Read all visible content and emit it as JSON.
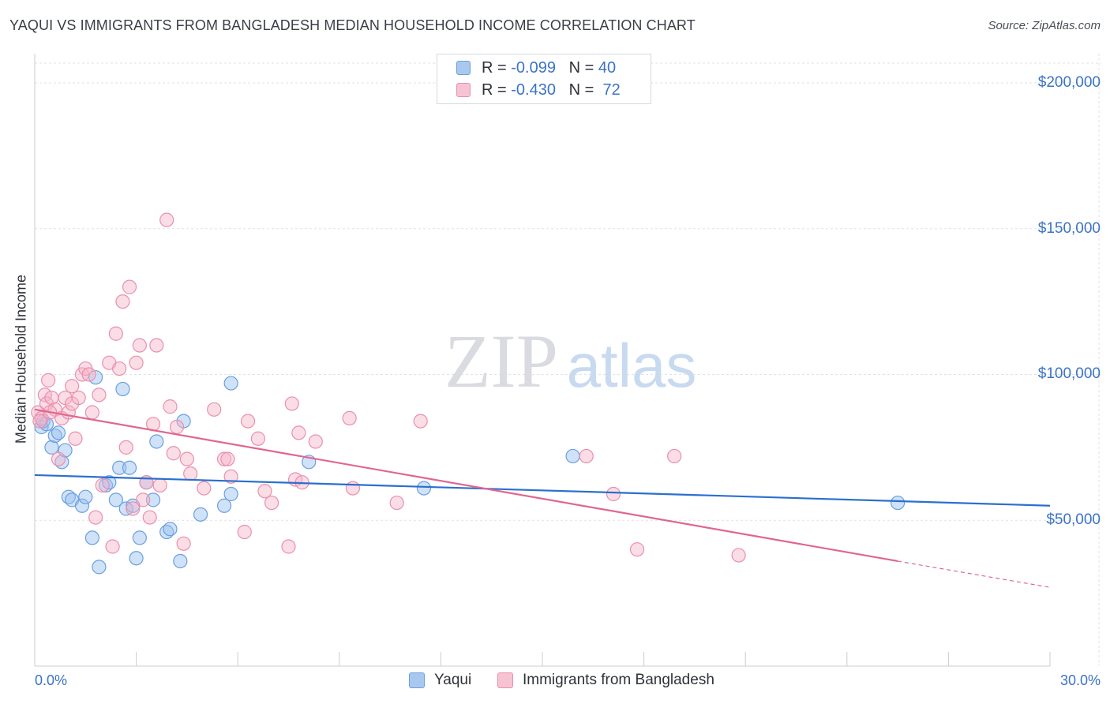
{
  "title": "YAQUI VS IMMIGRANTS FROM BANGLADESH MEDIAN HOUSEHOLD INCOME CORRELATION CHART",
  "source": "Source: ZipAtlas.com",
  "watermark": {
    "zip": "ZIP",
    "atlas": "atlas"
  },
  "legend": {
    "rows": [
      {
        "r_label": "R =",
        "r_value": "-0.099",
        "n_label": "N =",
        "n_value": "40",
        "color": "#a9c8f0",
        "border": "#6a9fe0"
      },
      {
        "r_label": "R =",
        "r_value": "-0.430",
        "n_label": "N =",
        "n_value": "72",
        "color": "#f7c3d3",
        "border": "#e98fae"
      }
    ],
    "bottom": [
      {
        "label": "Yaqui",
        "color": "#a9c8f0",
        "border": "#6a9fe0"
      },
      {
        "label": "Immigrants from Bangladesh",
        "color": "#f7c3d3",
        "border": "#e98fae"
      }
    ]
  },
  "chart_data": {
    "type": "scatter",
    "ylabel": "Median Household Income",
    "xlim": [
      0,
      30
    ],
    "ylim": [
      0,
      210000
    ],
    "x_tick_labels": [
      "0.0%",
      "30.0%"
    ],
    "y_ticks": [
      {
        "value": 50000,
        "label": "$50,000"
      },
      {
        "value": 100000,
        "label": "$100,000"
      },
      {
        "value": 150000,
        "label": "$150,000"
      },
      {
        "value": 200000,
        "label": "$200,000"
      }
    ],
    "grid": true,
    "series": [
      {
        "name": "Yaqui",
        "color": "#6a9fe0",
        "fill": "rgba(150,190,240,0.45)",
        "trend_color": "#2a6fd0",
        "trend": {
          "x": [
            0,
            30
          ],
          "y": [
            65500,
            55000
          ]
        },
        "points": [
          [
            0.2,
            82000
          ],
          [
            0.25,
            84000
          ],
          [
            0.35,
            83000
          ],
          [
            0.5,
            75000
          ],
          [
            0.6,
            79000
          ],
          [
            0.7,
            80000
          ],
          [
            0.8,
            70000
          ],
          [
            0.9,
            74000
          ],
          [
            1.0,
            58000
          ],
          [
            1.1,
            57000
          ],
          [
            1.4,
            55000
          ],
          [
            1.5,
            58000
          ],
          [
            1.7,
            44000
          ],
          [
            1.8,
            99000
          ],
          [
            1.9,
            34000
          ],
          [
            2.1,
            62000
          ],
          [
            2.2,
            63000
          ],
          [
            2.4,
            57000
          ],
          [
            2.5,
            68000
          ],
          [
            2.6,
            95000
          ],
          [
            2.7,
            54000
          ],
          [
            2.8,
            68000
          ],
          [
            2.9,
            55000
          ],
          [
            3.0,
            37000
          ],
          [
            3.1,
            44000
          ],
          [
            3.3,
            63000
          ],
          [
            3.5,
            57000
          ],
          [
            3.6,
            77000
          ],
          [
            3.9,
            46000
          ],
          [
            4.0,
            47000
          ],
          [
            4.3,
            36000
          ],
          [
            4.4,
            84000
          ],
          [
            4.9,
            52000
          ],
          [
            5.6,
            55000
          ],
          [
            5.8,
            59000
          ],
          [
            5.8,
            97000
          ],
          [
            8.1,
            70000
          ],
          [
            11.5,
            61000
          ],
          [
            15.9,
            72000
          ],
          [
            25.5,
            56000
          ]
        ]
      },
      {
        "name": "Immigrants from Bangladesh",
        "color": "#e98fae",
        "fill": "rgba(247,180,200,0.45)",
        "trend_color": "#e0668f",
        "trend": {
          "x": [
            0,
            25.5
          ],
          "y": [
            88000,
            36000
          ]
        },
        "trend_dashed": {
          "x": [
            25.5,
            30
          ],
          "y": [
            36000,
            27000
          ]
        },
        "points": [
          [
            0.1,
            87000
          ],
          [
            0.2,
            85000
          ],
          [
            0.3,
            93000
          ],
          [
            0.35,
            90000
          ],
          [
            0.4,
            98000
          ],
          [
            0.5,
            92000
          ],
          [
            0.6,
            88000
          ],
          [
            0.7,
            71000
          ],
          [
            0.8,
            85000
          ],
          [
            0.9,
            92000
          ],
          [
            1.0,
            87000
          ],
          [
            1.1,
            90000
          ],
          [
            1.1,
            96000
          ],
          [
            1.2,
            78000
          ],
          [
            1.3,
            92000
          ],
          [
            1.4,
            100000
          ],
          [
            1.5,
            102000
          ],
          [
            1.6,
            100000
          ],
          [
            1.7,
            87000
          ],
          [
            1.8,
            51000
          ],
          [
            1.9,
            93000
          ],
          [
            2.0,
            62000
          ],
          [
            2.2,
            104000
          ],
          [
            2.3,
            41000
          ],
          [
            2.4,
            114000
          ],
          [
            2.5,
            102000
          ],
          [
            2.6,
            125000
          ],
          [
            2.7,
            75000
          ],
          [
            2.8,
            130000
          ],
          [
            2.9,
            54000
          ],
          [
            3.0,
            104000
          ],
          [
            3.1,
            110000
          ],
          [
            3.2,
            57000
          ],
          [
            3.3,
            63000
          ],
          [
            3.4,
            51000
          ],
          [
            3.5,
            83000
          ],
          [
            3.6,
            110000
          ],
          [
            3.7,
            62000
          ],
          [
            3.9,
            153000
          ],
          [
            4.0,
            89000
          ],
          [
            4.1,
            73000
          ],
          [
            4.2,
            82000
          ],
          [
            4.4,
            42000
          ],
          [
            4.5,
            71000
          ],
          [
            4.6,
            66000
          ],
          [
            5.0,
            61000
          ],
          [
            5.3,
            88000
          ],
          [
            5.6,
            71000
          ],
          [
            5.7,
            71000
          ],
          [
            5.8,
            65000
          ],
          [
            6.2,
            46000
          ],
          [
            6.3,
            84000
          ],
          [
            6.6,
            78000
          ],
          [
            6.8,
            60000
          ],
          [
            7.0,
            56000
          ],
          [
            7.5,
            41000
          ],
          [
            7.6,
            90000
          ],
          [
            7.7,
            64000
          ],
          [
            7.8,
            80000
          ],
          [
            7.9,
            63000
          ],
          [
            8.3,
            77000
          ],
          [
            9.3,
            85000
          ],
          [
            9.4,
            61000
          ],
          [
            10.7,
            56000
          ],
          [
            11.4,
            84000
          ],
          [
            16.3,
            72000
          ],
          [
            17.1,
            59000
          ],
          [
            17.8,
            40000
          ],
          [
            18.9,
            72000
          ],
          [
            20.8,
            38000
          ],
          [
            0.15,
            84000
          ],
          [
            0.45,
            87000
          ]
        ]
      }
    ]
  }
}
